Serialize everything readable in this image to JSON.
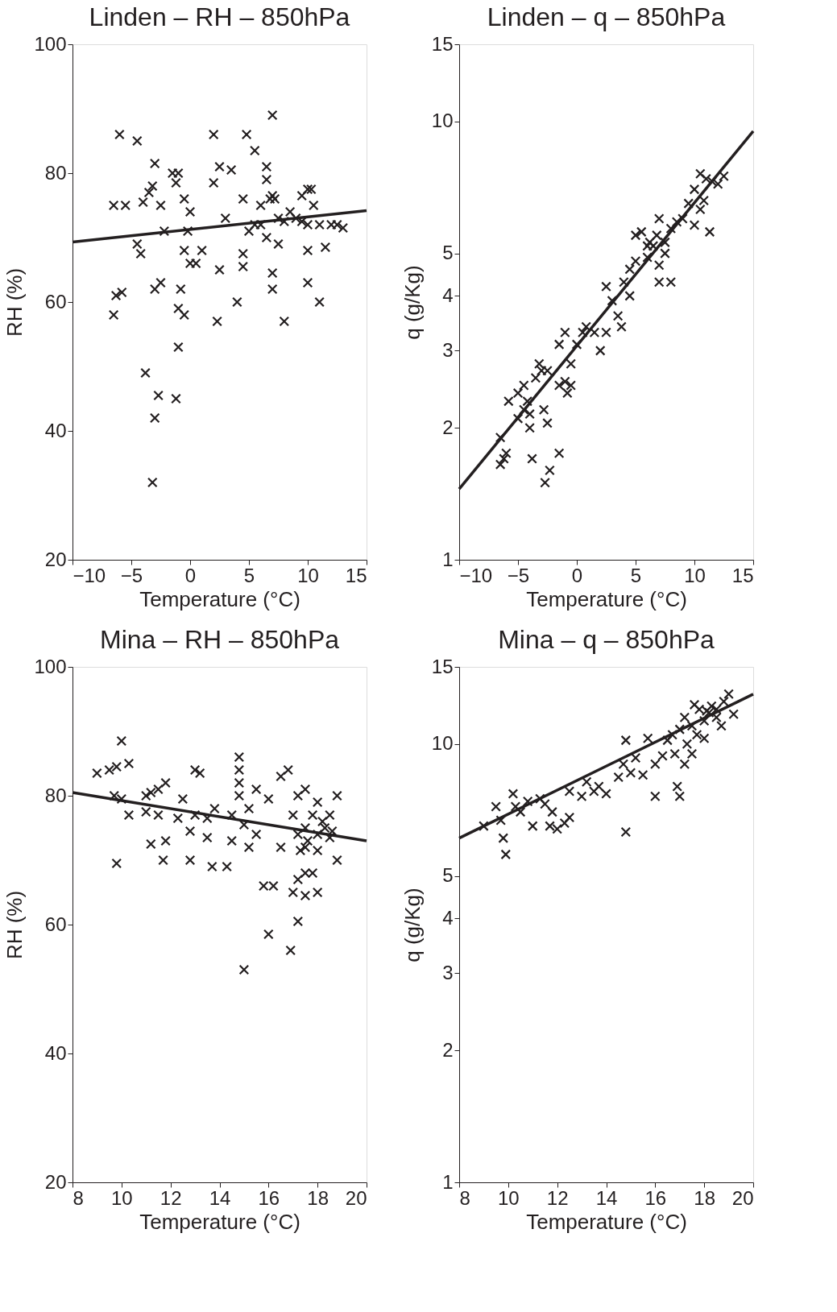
{
  "chart_data": [
    {
      "type": "scatter",
      "title": "Linden – RH – 850hPa",
      "xlabel": "Temperature (°C)",
      "ylabel": "RH (%)",
      "xlim": [
        -10,
        15
      ],
      "ylim": [
        20,
        100
      ],
      "xticks": [
        -10,
        -5,
        0,
        5,
        10,
        15
      ],
      "yticks": [
        20,
        40,
        60,
        80,
        100
      ],
      "grid": false,
      "series": [
        {
          "type": "scatter",
          "marker": "cross",
          "color": "#231f20",
          "x": [
            -6.5,
            -6,
            -5.5,
            -4.5,
            -6.3,
            -5.8,
            -6.5,
            -4.5,
            -4.2,
            -4,
            -3.5,
            -3,
            -3.2,
            -2.5,
            -2.2,
            -3.8,
            -3,
            -2.5,
            -2.7,
            -3,
            -3.2,
            -1.5,
            -1.2,
            -1,
            -0.5,
            0,
            -1,
            -1.2,
            -0.8,
            -1,
            -0.5,
            0,
            0.5,
            -0.2,
            -0.5,
            1,
            2,
            2,
            2.5,
            2.3,
            2.5,
            3,
            3.5,
            4,
            4.5,
            4.5,
            4.5,
            4.8,
            5.5,
            5.5,
            6,
            6.5,
            6.5,
            6.8,
            7,
            7,
            7.2,
            6.5,
            7,
            7,
            7.5,
            8,
            7.5,
            8.5,
            9,
            9.5,
            10,
            10.3,
            10.5,
            10,
            10,
            10,
            11,
            11,
            11.5,
            12,
            12.5,
            13,
            6,
            5,
            8,
            9.5
          ],
          "values": [
            75,
            86,
            75,
            85,
            61,
            61.5,
            58,
            69,
            67.5,
            75.5,
            77,
            81.5,
            78,
            75,
            71,
            49,
            62,
            63,
            45.5,
            42,
            32,
            80,
            78.5,
            80,
            76,
            74,
            53,
            45,
            62,
            59,
            58,
            66,
            66,
            71,
            68,
            68,
            86,
            78.5,
            81,
            57,
            65,
            73,
            80.5,
            60,
            67.5,
            65.5,
            76,
            86,
            83.5,
            72,
            75,
            81,
            79,
            76,
            76.5,
            89,
            76,
            70,
            64.5,
            62,
            69,
            57,
            73,
            74,
            73,
            76.5,
            77.5,
            77.5,
            75,
            72,
            68,
            63,
            72,
            60,
            68.5,
            72,
            72,
            71.5,
            72,
            71,
            72.5,
            72.5
          ]
        },
        {
          "type": "line",
          "color": "#231f20",
          "x": [
            -10,
            15
          ],
          "values": [
            69.3,
            74.2
          ]
        }
      ]
    },
    {
      "type": "scatter",
      "title": "Linden – q – 850hPa",
      "xlabel": "Temperature (°C)",
      "ylabel": "q (g/Kg)",
      "xlim": [
        -10,
        15
      ],
      "ylim": [
        1,
        15
      ],
      "xticks": [
        -10,
        -5,
        0,
        5,
        10,
        15
      ],
      "yticks": [
        1,
        2,
        3,
        4,
        5,
        10,
        15
      ],
      "log": "y",
      "grid": false,
      "series": [
        {
          "type": "scatter",
          "marker": "cross",
          "color": "#231f20",
          "x": [
            -6.5,
            -6.5,
            -6.2,
            -6,
            -5.8,
            -5,
            -5,
            -4.5,
            -4.5,
            -4.2,
            -4,
            -4,
            -3.8,
            -3.5,
            -3.2,
            -3,
            -2.8,
            -2.5,
            -2.5,
            -2.7,
            -2.3,
            -1.5,
            -1.5,
            -1.5,
            -1,
            -1,
            -0.8,
            -0.5,
            -0.5,
            0,
            0.5,
            0.8,
            1.5,
            2,
            2.5,
            2.5,
            3,
            3.5,
            3.8,
            4,
            4.5,
            4.5,
            5,
            5,
            5.5,
            6,
            6,
            6.5,
            6.8,
            7,
            7,
            7,
            7.5,
            7.5,
            8,
            8,
            8.5,
            9,
            9.5,
            10,
            10,
            10.5,
            10.8,
            11,
            11.3,
            11.5,
            12,
            12.5,
            10.5,
            6.2
          ],
          "values": [
            1.9,
            1.65,
            1.7,
            1.75,
            2.3,
            2.1,
            2.4,
            2.5,
            2.2,
            2.3,
            2.0,
            2.15,
            1.7,
            2.6,
            2.8,
            2.7,
            2.2,
            2.7,
            2.05,
            1.5,
            1.6,
            1.75,
            2.5,
            3.1,
            3.3,
            2.55,
            2.4,
            2.5,
            2.8,
            3.1,
            3.3,
            3.4,
            3.3,
            3.0,
            3.3,
            4.2,
            3.9,
            3.6,
            3.4,
            4.3,
            4.0,
            4.6,
            4.8,
            5.5,
            5.6,
            5.2,
            4.9,
            5.2,
            5.5,
            6.0,
            4.7,
            4.3,
            5.0,
            5.3,
            4.3,
            5.7,
            5.9,
            6.0,
            6.5,
            7.0,
            5.8,
            6.3,
            6.6,
            7.4,
            5.6,
            7.3,
            7.2,
            7.5,
            7.6,
            5.3
          ]
        },
        {
          "type": "line",
          "color": "#231f20",
          "x": [
            -10,
            15
          ],
          "values": [
            1.45,
            9.5
          ]
        }
      ]
    },
    {
      "type": "scatter",
      "title": "Mina – RH – 850hPa",
      "xlabel": "Temperature (°C)",
      "ylabel": "RH (%)",
      "xlim": [
        8,
        20
      ],
      "ylim": [
        20,
        100
      ],
      "xticks": [
        8,
        10,
        12,
        14,
        16,
        18,
        20
      ],
      "yticks": [
        20,
        40,
        60,
        80,
        100
      ],
      "grid": false,
      "series": [
        {
          "type": "scatter",
          "marker": "cross",
          "color": "#231f20",
          "x": [
            9,
            9.5,
            9.8,
            10,
            10.3,
            9.7,
            10,
            10.3,
            9.8,
            11,
            11.2,
            11,
            11.5,
            11.8,
            11.5,
            11.2,
            11.8,
            11.7,
            12.3,
            12.5,
            12.8,
            13,
            13.2,
            13,
            13.5,
            13.5,
            13.8,
            14.5,
            14.8,
            14.8,
            14.8,
            14.8,
            15.2,
            15.5,
            15,
            14.5,
            15.2,
            15.5,
            16,
            16.5,
            16.8,
            16.5,
            15.8,
            16.2,
            16,
            15,
            16.9,
            17.2,
            17,
            17.2,
            17.5,
            17.5,
            17.8,
            18,
            18.2,
            18.5,
            18.8,
            17.6,
            18,
            18.5,
            18.8,
            17.2,
            17.5,
            17,
            17.5,
            18,
            17.8,
            17.2,
            17.5,
            18,
            18.3,
            18.6,
            17.3,
            14.3,
            13.7,
            12.8
          ],
          "values": [
            83.5,
            84,
            84.5,
            88.5,
            85,
            80,
            79.5,
            77,
            69.5,
            80,
            80.5,
            77.5,
            81,
            82,
            77,
            72.5,
            73,
            70,
            76.5,
            79.5,
            74.5,
            84,
            83.5,
            77,
            73.5,
            76.5,
            78,
            77,
            82,
            86,
            84,
            80,
            78,
            74,
            75.5,
            73,
            72,
            81,
            79.5,
            83,
            84,
            72,
            66,
            66,
            58.5,
            53,
            56,
            60.5,
            77,
            80,
            81,
            75,
            77,
            79,
            76,
            77,
            80,
            73,
            71.5,
            73.5,
            70,
            67,
            68,
            65,
            64.5,
            65,
            68,
            74,
            72,
            74,
            75,
            74.5,
            71.5,
            69,
            69,
            70
          ]
        },
        {
          "type": "line",
          "color": "#231f20",
          "x": [
            8,
            20
          ],
          "values": [
            80.5,
            73
          ]
        }
      ]
    },
    {
      "type": "scatter",
      "title": "Mina – q – 850hPa",
      "xlabel": "Temperature (°C)",
      "ylabel": "q (g/Kg)",
      "xlim": [
        8,
        20
      ],
      "ylim": [
        1,
        15
      ],
      "xticks": [
        8,
        10,
        12,
        14,
        16,
        18,
        20
      ],
      "yticks": [
        1,
        2,
        3,
        4,
        5,
        10,
        15
      ],
      "log": "y",
      "grid": false,
      "series": [
        {
          "type": "scatter",
          "marker": "cross",
          "color": "#231f20",
          "x": [
            9,
            9.5,
            9.7,
            9.8,
            9.9,
            10.2,
            10.3,
            10.5,
            10.8,
            11,
            11.3,
            11.5,
            11.7,
            11.8,
            12,
            12.3,
            12.5,
            12.5,
            13,
            13.2,
            13.5,
            13.7,
            14,
            14.5,
            14.7,
            14.8,
            14.8,
            15,
            15.2,
            15.5,
            15.7,
            16,
            16,
            16.3,
            16.5,
            16.8,
            16.9,
            17,
            17,
            17.2,
            17.3,
            17.5,
            17.5,
            17.7,
            17.8,
            18,
            18,
            18.2,
            18.3,
            18.5,
            18.7,
            18.8,
            18.5,
            19,
            19.2,
            17.2,
            16.7,
            17.6,
            18.1
          ],
          "values": [
            6.5,
            7.2,
            6.7,
            6.1,
            5.6,
            7.7,
            7.2,
            7.0,
            7.4,
            6.5,
            7.5,
            7.3,
            6.5,
            7.0,
            6.4,
            6.6,
            6.8,
            7.8,
            7.6,
            8.2,
            7.8,
            8.0,
            7.7,
            8.4,
            9.0,
            10.2,
            6.3,
            8.6,
            9.3,
            8.5,
            10.3,
            9.0,
            7.6,
            9.4,
            10.2,
            9.5,
            8.0,
            7.6,
            10.8,
            11.5,
            10.0,
            9.5,
            11.0,
            10.5,
            12.0,
            11.3,
            10.3,
            11.8,
            12.2,
            11.5,
            11.0,
            12.5,
            12.0,
            13.0,
            11.7,
            9.0,
            10.5,
            12.3,
            11.9
          ]
        },
        {
          "type": "line",
          "color": "#231f20",
          "x": [
            8,
            20
          ],
          "values": [
            6.1,
            13
          ]
        }
      ]
    }
  ]
}
